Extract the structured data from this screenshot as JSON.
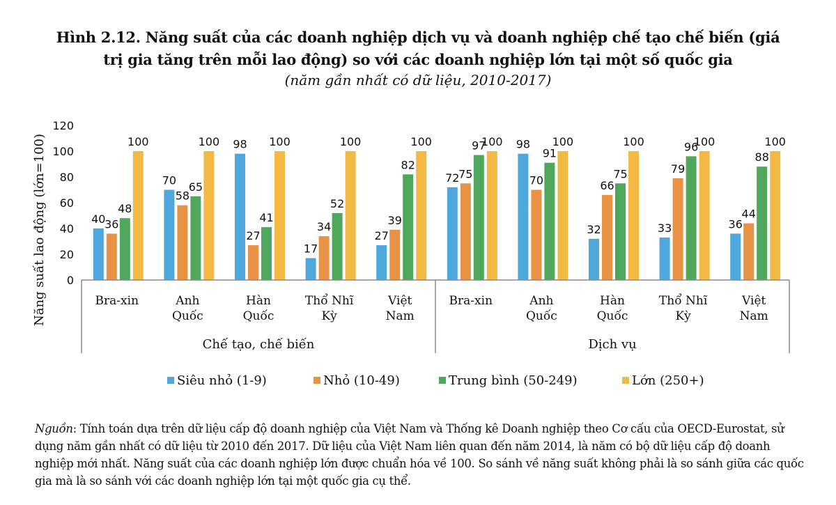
{
  "chart_data": {
    "type": "bar",
    "title": "Hình 2.12. Năng suất của các doanh nghiệp dịch vụ và doanh nghiệp chế tạo chế biến (giá trị gia tăng trên mỗi lao động) so với các doanh nghiệp lớn tại một số quốc gia",
    "title_lines": [
      "Hình 2.12. Năng suất của các doanh nghiệp dịch vụ và doanh nghiệp chế tạo chế biến (giá",
      "trị gia tăng trên mỗi lao động) so với các doanh nghiệp lớn tại một số quốc gia"
    ],
    "subtitle": "(năm gần nhất có dữ liệu, 2010-2017)",
    "ylabel": "Năng suất lao động (lớn=100)",
    "xlabel": "",
    "ylim": [
      0,
      120
    ],
    "yticks": [
      0,
      20,
      40,
      60,
      80,
      100,
      120
    ],
    "grid": false,
    "legend_position": "bottom",
    "groups": [
      {
        "label": "Chế tạo, chế biến",
        "categories": [
          0,
          1,
          2,
          3,
          4
        ]
      },
      {
        "label": "Dịch vụ",
        "categories": [
          5,
          6,
          7,
          8,
          9
        ]
      }
    ],
    "categories": [
      [
        "Bra-xin"
      ],
      [
        "Anh",
        "Quốc"
      ],
      [
        "Hàn",
        "Quốc"
      ],
      [
        "Thổ Nhĩ",
        "Kỳ"
      ],
      [
        "Việt",
        "Nam"
      ],
      [
        "Bra-xin"
      ],
      [
        "Anh",
        "Quốc"
      ],
      [
        "Hàn",
        "Quốc"
      ],
      [
        "Thổ Nhĩ",
        "Kỳ"
      ],
      [
        "Việt",
        "Nam"
      ]
    ],
    "series": [
      {
        "name": "Siêu nhỏ (1-9)",
        "color": "#4EA8DE",
        "values": [
          40,
          70,
          98,
          17,
          27,
          72,
          98,
          32,
          33,
          36
        ]
      },
      {
        "name": "Nhỏ (10-49)",
        "color": "#E89245",
        "values": [
          36,
          58,
          27,
          34,
          39,
          75,
          70,
          66,
          79,
          44
        ]
      },
      {
        "name": "Trung bình (50-249)",
        "color": "#4EA75A",
        "values": [
          48,
          65,
          41,
          52,
          82,
          97,
          91,
          75,
          96,
          88
        ]
      },
      {
        "name": "Lớn (250+)",
        "color": "#F2BA44",
        "values": [
          100,
          100,
          100,
          100,
          100,
          100,
          100,
          100,
          100,
          100
        ]
      }
    ]
  },
  "note": {
    "label": "Nguồn",
    "text": ": Tính toán dựa trên dữ liệu cấp độ doanh nghiệp của Việt Nam và Thống kê Doanh nghiệp theo Cơ cấu của OECD-Eurostat, sử dụng năm gần nhất có dữ liệu từ 2010 đến 2017. Dữ liệu của Việt Nam liên quan đến năm 2014, là năm có bộ dữ liệu cấp độ doanh nghiệp mới nhất. Năng suất của các doanh nghiệp lớn được chuẩn hóa về 100. So sánh về năng suất không phải là so sánh giữa các quốc gia mà là so sánh với các doanh nghiệp lớn tại một quốc gia cụ thể."
  }
}
